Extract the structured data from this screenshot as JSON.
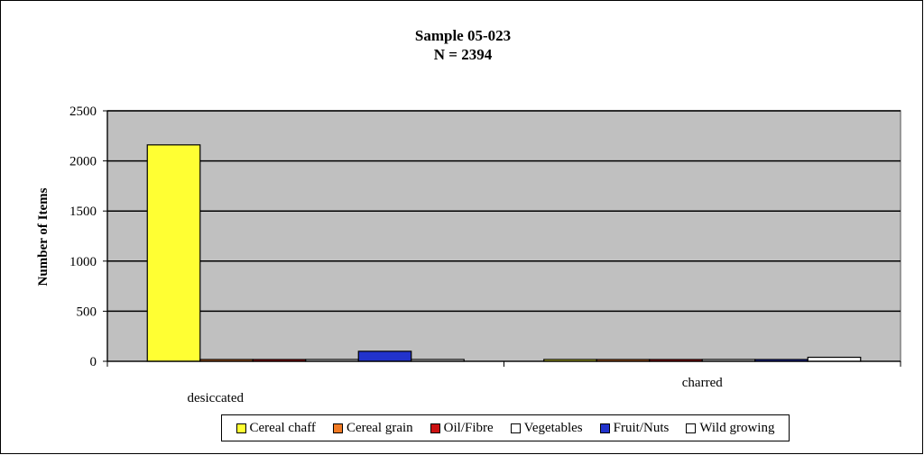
{
  "chart_data": {
    "type": "bar",
    "title_line1": "Sample 05-023",
    "title_line2": "N = 2394",
    "ylabel": "Number of Items",
    "xlabel": "",
    "ylim": [
      0,
      2500
    ],
    "yticks": [
      0,
      500,
      1000,
      1500,
      2000,
      2500
    ],
    "grid": true,
    "legend_position": "bottom",
    "plot_background": "#c0c0c0",
    "categories": [
      "desiccated",
      "charred"
    ],
    "series": [
      {
        "name": "Cereal chaff",
        "color": "#ffff33",
        "values": [
          2160,
          0
        ]
      },
      {
        "name": "Cereal grain",
        "color": "#f07a24",
        "values": [
          4,
          0
        ]
      },
      {
        "name": "Oil/Fibre",
        "color": "#cc1111",
        "values": [
          2,
          0
        ]
      },
      {
        "name": "Vegetables",
        "color": "#ffffff",
        "values": [
          3,
          0
        ]
      },
      {
        "name": "Fruit/Nuts",
        "color": "#2233cc",
        "values": [
          100,
          2
        ]
      },
      {
        "name": "Wild growing",
        "color": "#ffffff",
        "values": [
          10,
          40
        ]
      }
    ]
  }
}
